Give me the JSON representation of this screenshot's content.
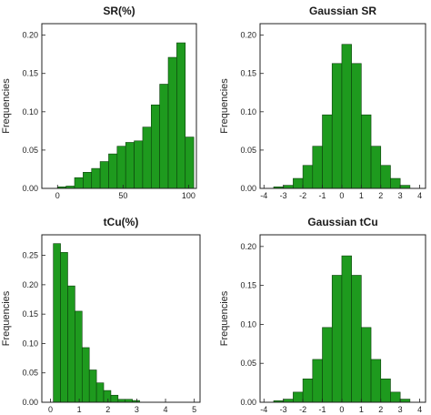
{
  "colors": {
    "bar": "#1e9a1e",
    "bar_edge": "#0b3f0b",
    "frame": "#222222",
    "text": "#222222"
  },
  "chart_data": [
    {
      "type": "bar",
      "title": "SR(%)",
      "xlabel": "",
      "ylabel": "Frequencies",
      "xlim": [
        -12,
        106
      ],
      "ylim": [
        0,
        0.215
      ],
      "xticks": [
        0,
        50,
        100
      ],
      "yticks": [
        0.0,
        0.05,
        0.1,
        0.15,
        0.2
      ],
      "ytick_labels": [
        "0.00",
        "0.05",
        "0.10",
        "0.15",
        "0.20"
      ],
      "bin_width": 6.5,
      "bins": [
        0,
        6.5,
        13,
        19.5,
        26,
        32.5,
        39,
        45.5,
        52,
        58.5,
        65,
        71.5,
        78,
        84.5,
        91,
        97.5
      ],
      "values": [
        0.002,
        0.003,
        0.014,
        0.021,
        0.026,
        0.035,
        0.045,
        0.055,
        0.06,
        0.062,
        0.08,
        0.109,
        0.136,
        0.171,
        0.19,
        0.067
      ]
    },
    {
      "type": "bar",
      "title": "Gaussian SR",
      "xlabel": "",
      "ylabel": "Frequencies",
      "xlim": [
        -4.2,
        4.3
      ],
      "ylim": [
        0,
        0.215
      ],
      "xticks": [
        -4,
        -3,
        -2,
        -1,
        0,
        1,
        2,
        3,
        4
      ],
      "yticks": [
        0.0,
        0.05,
        0.1,
        0.15,
        0.2
      ],
      "ytick_labels": [
        "0.00",
        "0.05",
        "0.10",
        "0.15",
        "0.20"
      ],
      "bin_width": 0.5,
      "bins": [
        -3.5,
        -3.0,
        -2.5,
        -2.0,
        -1.5,
        -1.0,
        -0.5,
        0.0,
        0.5,
        1.0,
        1.5,
        2.0,
        2.5,
        3.0
      ],
      "values": [
        0.002,
        0.004,
        0.013,
        0.03,
        0.055,
        0.096,
        0.163,
        0.188,
        0.163,
        0.096,
        0.055,
        0.03,
        0.013,
        0.004
      ]
    },
    {
      "type": "bar",
      "title": "tCu(%)",
      "xlabel": "",
      "ylabel": "Frequencies",
      "xlim": [
        -0.3,
        5.2
      ],
      "ylim": [
        0,
        0.285
      ],
      "xticks": [
        0,
        1,
        2,
        3,
        4,
        5
      ],
      "yticks": [
        0.0,
        0.05,
        0.1,
        0.15,
        0.2,
        0.25
      ],
      "ytick_labels": [
        "0.00",
        "0.05",
        "0.10",
        "0.15",
        "0.20",
        "0.25"
      ],
      "bin_width": 0.25,
      "bins": [
        0.1,
        0.35,
        0.6,
        0.85,
        1.1,
        1.35,
        1.6,
        1.85,
        2.1,
        2.35,
        2.6,
        2.85
      ],
      "values": [
        0.27,
        0.255,
        0.198,
        0.155,
        0.093,
        0.055,
        0.033,
        0.02,
        0.012,
        0.005,
        0.005,
        0.003
      ]
    },
    {
      "type": "bar",
      "title": "Gaussian tCu",
      "xlabel": "",
      "ylabel": "Frequencies",
      "xlim": [
        -4.2,
        4.3
      ],
      "ylim": [
        0,
        0.215
      ],
      "xticks": [
        -4,
        -3,
        -2,
        -1,
        0,
        1,
        2,
        3,
        4
      ],
      "yticks": [
        0.0,
        0.05,
        0.1,
        0.15,
        0.2
      ],
      "ytick_labels": [
        "0.00",
        "0.05",
        "0.10",
        "0.15",
        "0.20"
      ],
      "bin_width": 0.5,
      "bins": [
        -3.5,
        -3.0,
        -2.5,
        -2.0,
        -1.5,
        -1.0,
        -0.5,
        0.0,
        0.5,
        1.0,
        1.5,
        2.0,
        2.5,
        3.0
      ],
      "values": [
        0.002,
        0.004,
        0.013,
        0.03,
        0.055,
        0.096,
        0.163,
        0.188,
        0.163,
        0.096,
        0.055,
        0.03,
        0.013,
        0.004
      ]
    }
  ]
}
